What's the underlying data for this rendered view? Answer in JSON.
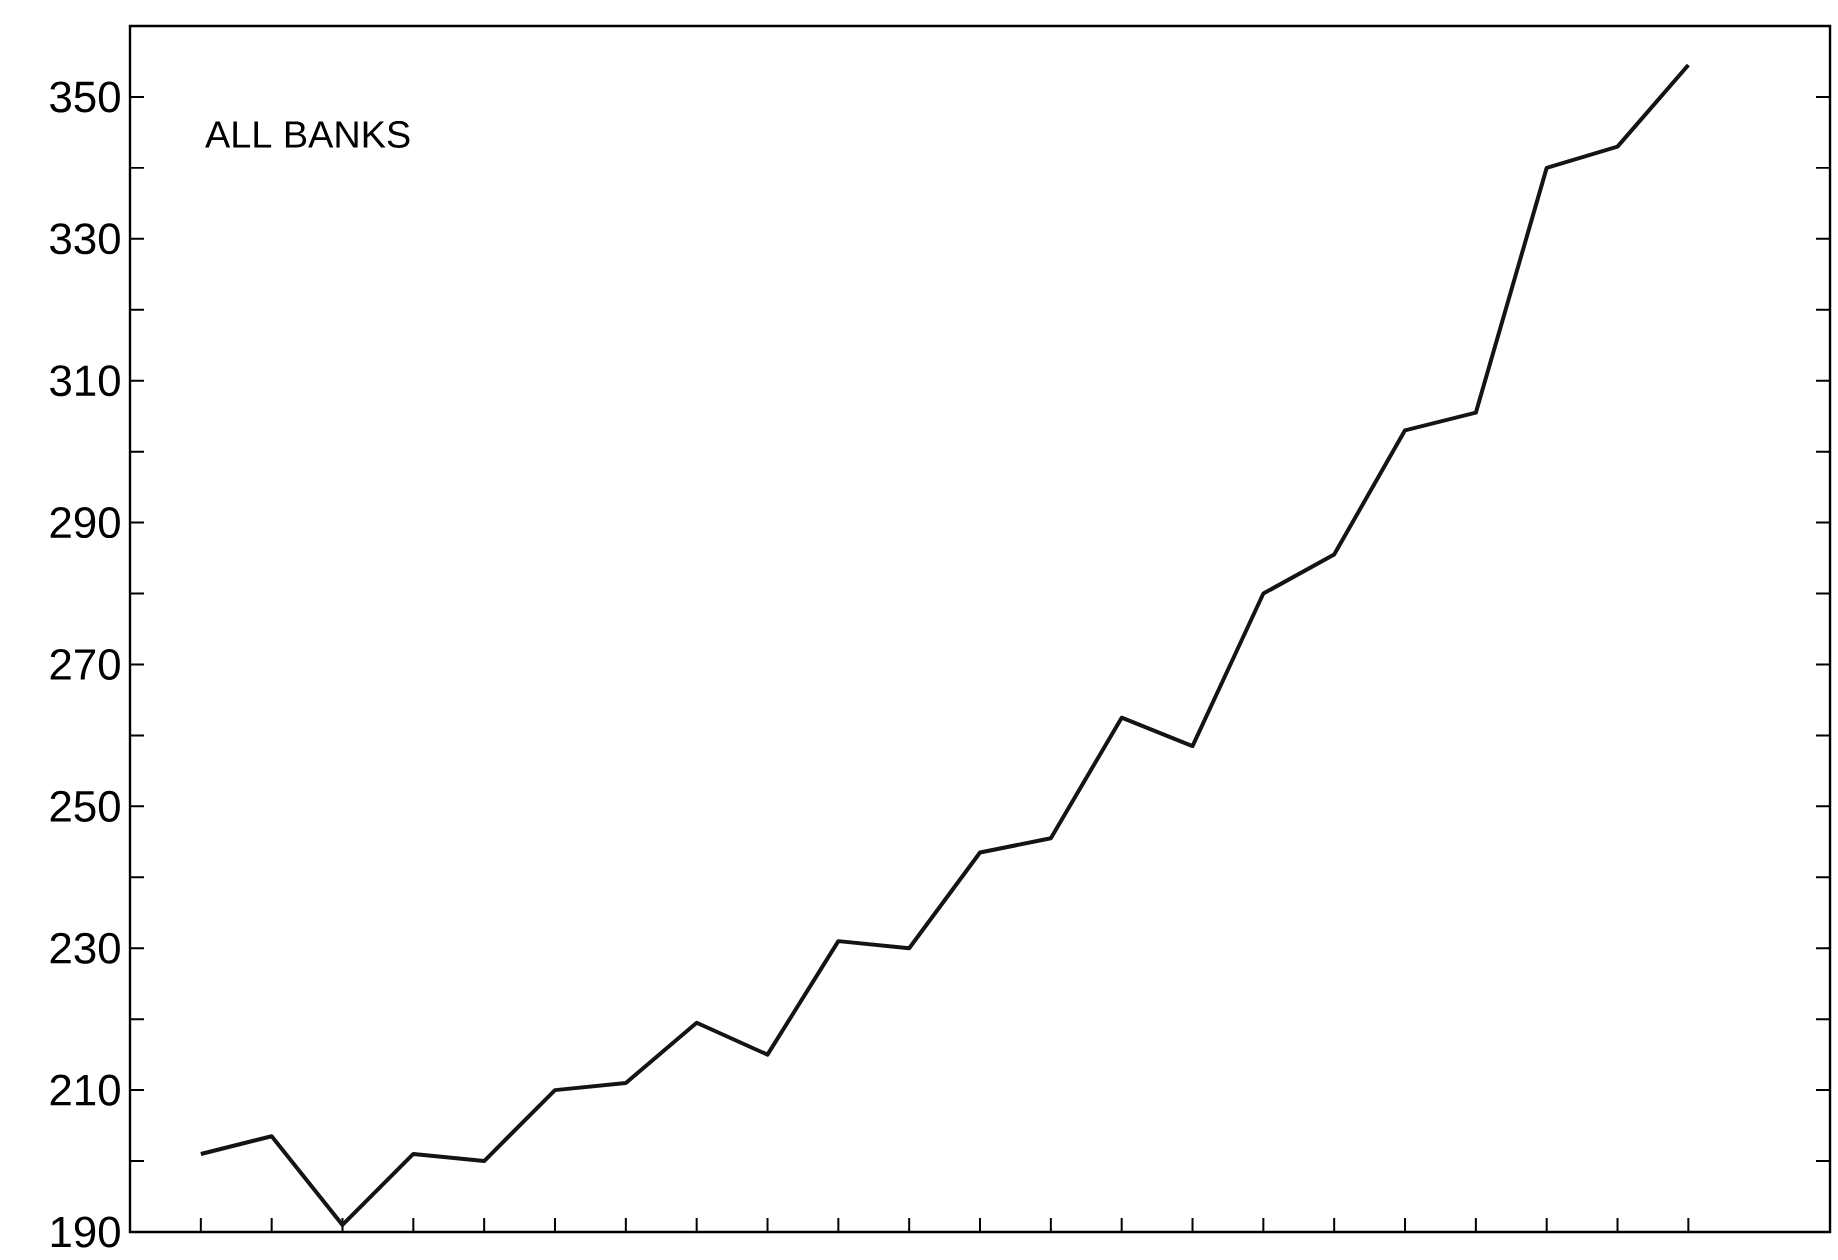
{
  "chart_data": {
    "type": "line",
    "categories": [
      null,
      null,
      null,
      null,
      null,
      null,
      null,
      null,
      null,
      null,
      null,
      null,
      null,
      null,
      null,
      null,
      null,
      null,
      null,
      null,
      null,
      null
    ],
    "values": [
      201,
      203.5,
      191,
      201,
      200,
      210,
      211,
      219.5,
      215,
      231,
      230,
      243.5,
      245.5,
      262.5,
      258.5,
      280,
      285.5,
      303,
      305.5,
      340,
      343,
      354.5
    ],
    "color": "#141414",
    "ylim": [
      190,
      360
    ],
    "yticks": [
      {
        "value": 190,
        "label": "190"
      },
      {
        "value": 200,
        "label": null
      },
      {
        "value": 210,
        "label": "210"
      },
      {
        "value": 220,
        "label": null
      },
      {
        "value": 230,
        "label": "230"
      },
      {
        "value": 240,
        "label": null
      },
      {
        "value": 250,
        "label": "250"
      },
      {
        "value": 260,
        "label": null
      },
      {
        "value": 270,
        "label": "270"
      },
      {
        "value": 280,
        "label": null
      },
      {
        "value": 290,
        "label": "290"
      },
      {
        "value": 300,
        "label": null
      },
      {
        "value": 310,
        "label": "310"
      },
      {
        "value": 320,
        "label": null
      },
      {
        "value": 330,
        "label": "330"
      },
      {
        "value": 340,
        "label": null
      },
      {
        "value": 350,
        "label": "350"
      }
    ],
    "tick_labels": "y",
    "grid": false,
    "marker": "none",
    "line_style": "solid",
    "annotations": [
      "ALL BANKS"
    ]
  }
}
